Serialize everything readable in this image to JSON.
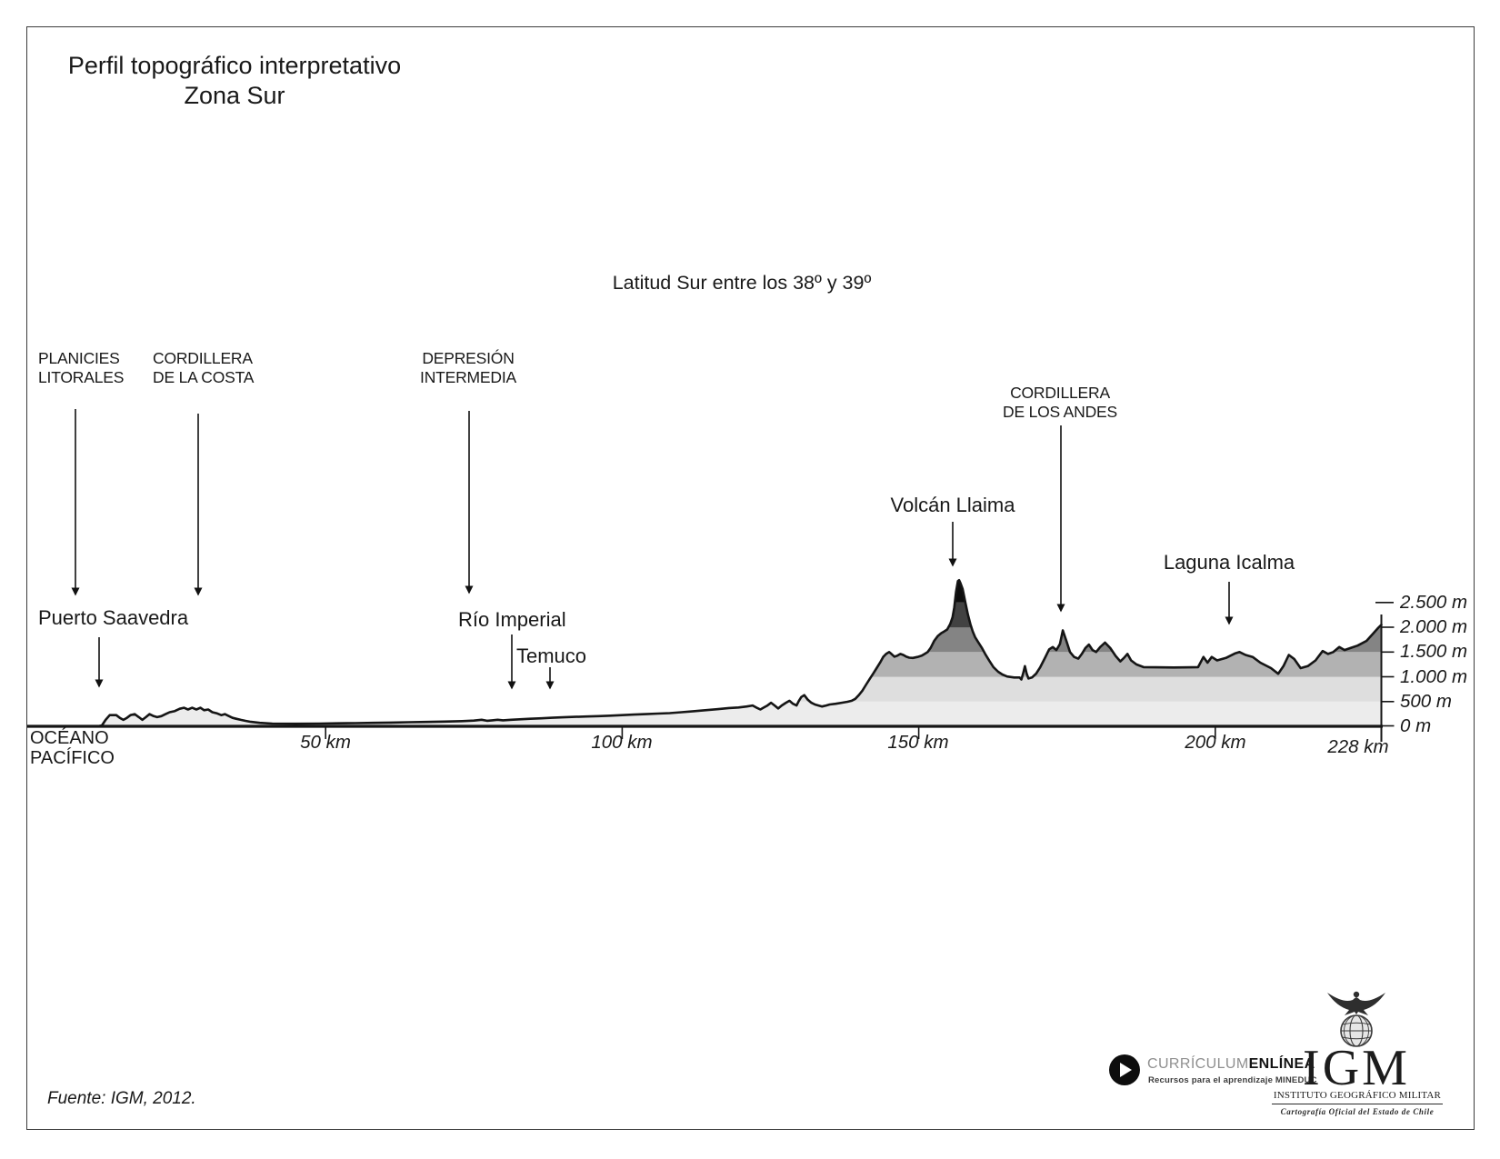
{
  "title": {
    "line1": "Perfil topográfico interpretativo",
    "line2": "Zona Sur"
  },
  "chart_data": {
    "type": "area",
    "title": "Perfil topográfico interpretativo — Zona Sur",
    "subtitle": "Latitud Sur entre los 38º y 39º",
    "xlabel": "km",
    "ylabel": "m",
    "xlim": [
      0,
      228
    ],
    "ylim": [
      0,
      2500
    ],
    "grid": false,
    "legend": "none",
    "x_ticks": [
      {
        "km": 50,
        "label": "50 km"
      },
      {
        "km": 100,
        "label": "100 km"
      },
      {
        "km": 150,
        "label": "150 km"
      },
      {
        "km": 200,
        "label": "200 km"
      },
      {
        "km": 228,
        "label": "228 km"
      }
    ],
    "y_ticks": [
      {
        "m": 2500,
        "label": "2.500 m"
      },
      {
        "m": 2000,
        "label": "2.000 m"
      },
      {
        "m": 1500,
        "label": "1.500 m"
      },
      {
        "m": 1000,
        "label": "1.000 m"
      },
      {
        "m": 500,
        "label": "500 m"
      },
      {
        "m": 0,
        "label": "0 m"
      }
    ],
    "ocean_label": {
      "line1": "OCÉANO",
      "line2": "PACÍFICO"
    },
    "elevation_bands": [
      {
        "from": 0,
        "to": 500,
        "color": "#ececec"
      },
      {
        "from": 500,
        "to": 1000,
        "color": "#dedede"
      },
      {
        "from": 1000,
        "to": 1500,
        "color": "#b2b2b2"
      },
      {
        "from": 1500,
        "to": 2000,
        "color": "#848484"
      },
      {
        "from": 2000,
        "to": 2500,
        "color": "#424242"
      },
      {
        "from": 2500,
        "to": 3000,
        "color": "#0d0d0d"
      }
    ],
    "annotations": {
      "regions": [
        {
          "line1": "PLANICIES",
          "line2": "LITORALES",
          "km": 7.8
        },
        {
          "line1": "CORDILLERA",
          "line2": "DE LA COSTA",
          "km": 28.5
        },
        {
          "line1": "DEPRESIÓN",
          "line2": "INTERMEDIA",
          "km": 74.2
        },
        {
          "line1": "CORDILLERA",
          "line2": "DE LOS ANDES",
          "km": 174.0
        }
      ],
      "places": [
        {
          "label": "Volcán Llaima",
          "km": 155.7
        },
        {
          "label": "Laguna Icalma",
          "km": 202.4
        },
        {
          "label": "Puerto Saavedra",
          "km": 11.8
        },
        {
          "label": "Río Imperial",
          "km": 81.4
        },
        {
          "label": "Temuco",
          "km": 87.8
        }
      ]
    },
    "profile_units": [
      "km",
      "m"
    ],
    "profile": [
      [
        0,
        0
      ],
      [
        11.7,
        0
      ],
      [
        12.3,
        20
      ],
      [
        12.9,
        130
      ],
      [
        13.6,
        225
      ],
      [
        14.7,
        225
      ],
      [
        15.3,
        170
      ],
      [
        15.9,
        130
      ],
      [
        16.5,
        170
      ],
      [
        17.1,
        225
      ],
      [
        17.8,
        245
      ],
      [
        18.5,
        185
      ],
      [
        19.1,
        130
      ],
      [
        19.7,
        185
      ],
      [
        20.3,
        245
      ],
      [
        21,
        205
      ],
      [
        21.6,
        185
      ],
      [
        22.3,
        205
      ],
      [
        23,
        245
      ],
      [
        23.7,
        285
      ],
      [
        24.5,
        305
      ],
      [
        25.4,
        355
      ],
      [
        26.1,
        375
      ],
      [
        26.8,
        340
      ],
      [
        27.5,
        375
      ],
      [
        28.2,
        340
      ],
      [
        28.9,
        375
      ],
      [
        29.5,
        325
      ],
      [
        30.2,
        340
      ],
      [
        30.9,
        285
      ],
      [
        31.6,
        265
      ],
      [
        32.4,
        225
      ],
      [
        33,
        245
      ],
      [
        33.7,
        205
      ],
      [
        34.3,
        170
      ],
      [
        35,
        150
      ],
      [
        35.7,
        130
      ],
      [
        36.5,
        110
      ],
      [
        37.4,
        90
      ],
      [
        38.9,
        70
      ],
      [
        41,
        55
      ],
      [
        45,
        52
      ],
      [
        49,
        55
      ],
      [
        52,
        60
      ],
      [
        55,
        65
      ],
      [
        58,
        70
      ],
      [
        61,
        76
      ],
      [
        64,
        82
      ],
      [
        67,
        88
      ],
      [
        70,
        95
      ],
      [
        73,
        105
      ],
      [
        75,
        115
      ],
      [
        76.3,
        132
      ],
      [
        77.2,
        112
      ],
      [
        78.1,
        122
      ],
      [
        79,
        132
      ],
      [
        79.9,
        122
      ],
      [
        81.3,
        132
      ],
      [
        82.7,
        142
      ],
      [
        84.5,
        152
      ],
      [
        86.4,
        162
      ],
      [
        88.2,
        172
      ],
      [
        90,
        182
      ],
      [
        92,
        190
      ],
      [
        94,
        198
      ],
      [
        96,
        206
      ],
      [
        98,
        214
      ],
      [
        100,
        226
      ],
      [
        102,
        236
      ],
      [
        104,
        246
      ],
      [
        106,
        256
      ],
      [
        108,
        266
      ],
      [
        110,
        285
      ],
      [
        112,
        305
      ],
      [
        114,
        325
      ],
      [
        116,
        345
      ],
      [
        118,
        368
      ],
      [
        119.6,
        380
      ],
      [
        121,
        400
      ],
      [
        122,
        420
      ],
      [
        122.6,
        380
      ],
      [
        123.3,
        340
      ],
      [
        123.9,
        380
      ],
      [
        124.5,
        420
      ],
      [
        125.1,
        475
      ],
      [
        125.7,
        420
      ],
      [
        126.3,
        360
      ],
      [
        126.9,
        420
      ],
      [
        127.6,
        475
      ],
      [
        128.2,
        515
      ],
      [
        128.8,
        455
      ],
      [
        129.4,
        420
      ],
      [
        129.8,
        515
      ],
      [
        130.2,
        590
      ],
      [
        130.7,
        630
      ],
      [
        131.3,
        535
      ],
      [
        131.9,
        475
      ],
      [
        132.5,
        440
      ],
      [
        133.1,
        420
      ],
      [
        133.7,
        400
      ],
      [
        134.4,
        420
      ],
      [
        135,
        440
      ],
      [
        136,
        455
      ],
      [
        137,
        475
      ],
      [
        138,
        495
      ],
      [
        138.7,
        515
      ],
      [
        139.3,
        555
      ],
      [
        139.9,
        630
      ],
      [
        140.5,
        720
      ],
      [
        141.1,
        835
      ],
      [
        141.7,
        950
      ],
      [
        142.3,
        1060
      ],
      [
        142.9,
        1175
      ],
      [
        143.5,
        1290
      ],
      [
        144,
        1400
      ],
      [
        144.5,
        1460
      ],
      [
        145,
        1500
      ],
      [
        145.4,
        1460
      ],
      [
        145.9,
        1405
      ],
      [
        146.4,
        1425
      ],
      [
        146.9,
        1460
      ],
      [
        147.4,
        1440
      ],
      [
        147.9,
        1405
      ],
      [
        148.4,
        1385
      ],
      [
        149,
        1380
      ],
      [
        149.8,
        1400
      ],
      [
        150.5,
        1425
      ],
      [
        151,
        1460
      ],
      [
        151.5,
        1500
      ],
      [
        152,
        1580
      ],
      [
        152.6,
        1725
      ],
      [
        153.2,
        1820
      ],
      [
        153.8,
        1880
      ],
      [
        154.3,
        1915
      ],
      [
        154.8,
        1955
      ],
      [
        155.3,
        2065
      ],
      [
        155.7,
        2200
      ],
      [
        156,
        2400
      ],
      [
        156.3,
        2720
      ],
      [
        156.6,
        2930
      ],
      [
        156.8,
        2950
      ],
      [
        157,
        2900
      ],
      [
        157.4,
        2770
      ],
      [
        157.9,
        2480
      ],
      [
        158.3,
        2255
      ],
      [
        158.7,
        2065
      ],
      [
        159.1,
        1915
      ],
      [
        159.5,
        1800
      ],
      [
        160,
        1705
      ],
      [
        160.6,
        1590
      ],
      [
        161.2,
        1460
      ],
      [
        161.9,
        1325
      ],
      [
        162.6,
        1195
      ],
      [
        163.4,
        1100
      ],
      [
        164.1,
        1045
      ],
      [
        164.9,
        1005
      ],
      [
        166.1,
        985
      ],
      [
        167,
        985
      ],
      [
        167.3,
        945
      ],
      [
        167.6,
        1065
      ],
      [
        167.9,
        1215
      ],
      [
        168.2,
        1065
      ],
      [
        168.5,
        965
      ],
      [
        169.1,
        985
      ],
      [
        169.8,
        1065
      ],
      [
        170.5,
        1195
      ],
      [
        171.3,
        1385
      ],
      [
        172,
        1555
      ],
      [
        172.6,
        1600
      ],
      [
        173.2,
        1540
      ],
      [
        173.8,
        1660
      ],
      [
        174.3,
        1935
      ],
      [
        174.9,
        1725
      ],
      [
        175.5,
        1500
      ],
      [
        176.2,
        1400
      ],
      [
        176.9,
        1365
      ],
      [
        177.5,
        1460
      ],
      [
        178.1,
        1580
      ],
      [
        178.7,
        1650
      ],
      [
        179.3,
        1540
      ],
      [
        179.9,
        1500
      ],
      [
        180.6,
        1600
      ],
      [
        181.4,
        1690
      ],
      [
        182.3,
        1580
      ],
      [
        183.2,
        1420
      ],
      [
        184,
        1310
      ],
      [
        184.6,
        1380
      ],
      [
        185.2,
        1460
      ],
      [
        185.8,
        1330
      ],
      [
        186.7,
        1250
      ],
      [
        187.9,
        1195
      ],
      [
        190,
        1190
      ],
      [
        193,
        1188
      ],
      [
        196,
        1190
      ],
      [
        197.1,
        1195
      ],
      [
        198,
        1400
      ],
      [
        198.7,
        1285
      ],
      [
        199.4,
        1400
      ],
      [
        200.3,
        1330
      ],
      [
        201.8,
        1380
      ],
      [
        203.3,
        1470
      ],
      [
        204.1,
        1500
      ],
      [
        205.1,
        1440
      ],
      [
        206.3,
        1400
      ],
      [
        207.6,
        1285
      ],
      [
        209.4,
        1175
      ],
      [
        210.6,
        1060
      ],
      [
        211.5,
        1215
      ],
      [
        212.4,
        1440
      ],
      [
        213.3,
        1360
      ],
      [
        214.4,
        1175
      ],
      [
        215.6,
        1215
      ],
      [
        216.9,
        1330
      ],
      [
        218.1,
        1520
      ],
      [
        219,
        1460
      ],
      [
        219.9,
        1500
      ],
      [
        220.9,
        1600
      ],
      [
        221.8,
        1540
      ],
      [
        222.8,
        1580
      ],
      [
        224,
        1630
      ],
      [
        225.5,
        1725
      ],
      [
        226.6,
        1870
      ],
      [
        227.5,
        1990
      ],
      [
        228,
        2050
      ]
    ]
  },
  "footer": {
    "source": "Fuente: IGM,  2012.",
    "curriculum": {
      "brand_regular": "CURRÍCULUM",
      "brand_bold": "ENLÍNEA",
      "tagline": "Recursos para el aprendizaje MINEDUC"
    },
    "igm": {
      "acronym": "IGM",
      "name": "INSTITUTO GEOGRÁFICO MILITAR",
      "tagline": "Cartografía Oficial del Estado de Chile"
    }
  }
}
